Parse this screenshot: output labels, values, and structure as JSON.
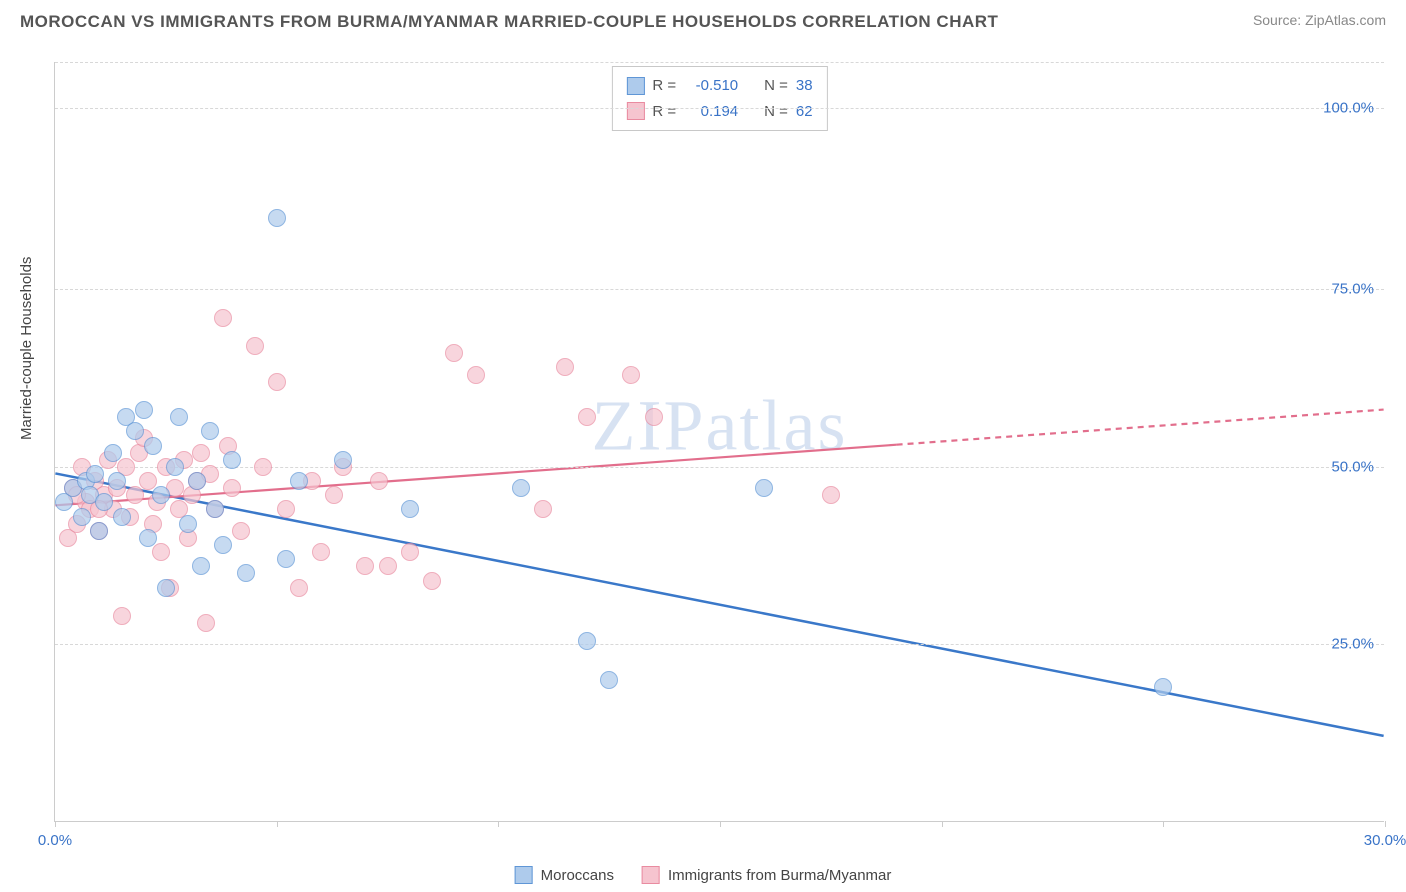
{
  "title": "MOROCCAN VS IMMIGRANTS FROM BURMA/MYANMAR MARRIED-COUPLE HOUSEHOLDS CORRELATION CHART",
  "source": "Source: ZipAtlas.com",
  "watermark": "ZIPatlas",
  "y_axis_label": "Married-couple Households",
  "chart": {
    "type": "scatter",
    "xlim": [
      0,
      30
    ],
    "ylim": [
      0,
      107
    ],
    "x_ticks": [
      0,
      5,
      10,
      15,
      20,
      25,
      30
    ],
    "x_tick_labels": {
      "0": "0.0%",
      "30": "30.0%"
    },
    "y_gridlines": [
      25,
      50,
      75,
      100.5,
      107
    ],
    "y_tick_labels": {
      "25": "25.0%",
      "50": "50.0%",
      "75": "75.0%",
      "100.5": "100.0%"
    },
    "background_color": "#ffffff",
    "grid_color": "#d8d8d8",
    "axis_color": "#cccccc",
    "tick_label_color": "#3973c7",
    "marker_radius": 9,
    "marker_opacity": 0.7
  },
  "series": {
    "blue": {
      "label": "Moroccans",
      "fill": "#aecbec",
      "stroke": "#5f96d6",
      "line_color": "#3a78c9",
      "line_width": 2.5,
      "R": "-0.510",
      "N": "38",
      "regression": {
        "x1": 0,
        "y1": 49,
        "x2": 30,
        "y2": 12,
        "dash_from_x": 30
      },
      "points": [
        [
          0.2,
          45
        ],
        [
          0.4,
          47
        ],
        [
          0.6,
          43
        ],
        [
          0.7,
          48
        ],
        [
          0.8,
          46
        ],
        [
          1.0,
          41
        ],
        [
          1.1,
          45
        ],
        [
          1.3,
          52
        ],
        [
          1.4,
          48
        ],
        [
          1.5,
          43
        ],
        [
          1.6,
          57
        ],
        [
          1.8,
          55
        ],
        [
          2.0,
          58
        ],
        [
          2.1,
          40
        ],
        [
          2.2,
          53
        ],
        [
          2.4,
          46
        ],
        [
          2.5,
          33
        ],
        [
          2.7,
          50
        ],
        [
          2.8,
          57
        ],
        [
          3.0,
          42
        ],
        [
          3.2,
          48
        ],
        [
          3.3,
          36
        ],
        [
          3.5,
          55
        ],
        [
          3.6,
          44
        ],
        [
          3.8,
          39
        ],
        [
          4.0,
          51
        ],
        [
          4.3,
          35
        ],
        [
          5.0,
          85
        ],
        [
          5.2,
          37
        ],
        [
          5.5,
          48
        ],
        [
          6.5,
          51
        ],
        [
          8.0,
          44
        ],
        [
          10.5,
          47
        ],
        [
          12.0,
          25.5
        ],
        [
          12.5,
          20
        ],
        [
          16.0,
          47
        ],
        [
          25.0,
          19
        ],
        [
          0.9,
          49
        ]
      ]
    },
    "pink": {
      "label": "Immigrants from Burma/Myanmar",
      "fill": "#f6c4cf",
      "stroke": "#e98ba0",
      "line_color": "#e26e8c",
      "line_width": 2.2,
      "R": "0.194",
      "N": "62",
      "regression": {
        "x1": 0,
        "y1": 44.5,
        "x2": 30,
        "y2": 58,
        "dash_from_x": 19
      },
      "points": [
        [
          0.3,
          40
        ],
        [
          0.4,
          47
        ],
        [
          0.5,
          42
        ],
        [
          0.6,
          50
        ],
        [
          0.7,
          45
        ],
        [
          0.8,
          44
        ],
        [
          0.9,
          48
        ],
        [
          1.0,
          41
        ],
        [
          1.1,
          46
        ],
        [
          1.2,
          51
        ],
        [
          1.3,
          44
        ],
        [
          1.4,
          47
        ],
        [
          1.5,
          29
        ],
        [
          1.6,
          50
        ],
        [
          1.7,
          43
        ],
        [
          1.8,
          46
        ],
        [
          1.9,
          52
        ],
        [
          2.0,
          54
        ],
        [
          2.1,
          48
        ],
        [
          2.2,
          42
        ],
        [
          2.3,
          45
        ],
        [
          2.4,
          38
        ],
        [
          2.5,
          50
        ],
        [
          2.6,
          33
        ],
        [
          2.7,
          47
        ],
        [
          2.8,
          44
        ],
        [
          2.9,
          51
        ],
        [
          3.0,
          40
        ],
        [
          3.1,
          46
        ],
        [
          3.2,
          48
        ],
        [
          3.3,
          52
        ],
        [
          3.4,
          28
        ],
        [
          3.5,
          49
        ],
        [
          3.6,
          44
        ],
        [
          3.8,
          71
        ],
        [
          3.9,
          53
        ],
        [
          4.0,
          47
        ],
        [
          4.2,
          41
        ],
        [
          4.5,
          67
        ],
        [
          4.7,
          50
        ],
        [
          5.0,
          62
        ],
        [
          5.2,
          44
        ],
        [
          5.5,
          33
        ],
        [
          5.8,
          48
        ],
        [
          6.0,
          38
        ],
        [
          6.3,
          46
        ],
        [
          6.5,
          50
        ],
        [
          7.0,
          36
        ],
        [
          7.3,
          48
        ],
        [
          7.5,
          36
        ],
        [
          8.0,
          38
        ],
        [
          8.5,
          34
        ],
        [
          9.0,
          66
        ],
        [
          9.5,
          63
        ],
        [
          11.0,
          44
        ],
        [
          11.5,
          64
        ],
        [
          12.0,
          57
        ],
        [
          13.0,
          63
        ],
        [
          13.5,
          57
        ],
        [
          17.5,
          46
        ],
        [
          0.5,
          46
        ],
        [
          1.0,
          44
        ]
      ]
    }
  },
  "legend_top": {
    "rows": [
      {
        "swatch": "blue",
        "r_label": "R =",
        "r_val": "-0.510",
        "n_label": "N =",
        "n_val": "38"
      },
      {
        "swatch": "pink",
        "r_label": "R =",
        "r_val": "0.194",
        "n_label": "N =",
        "n_val": "62"
      }
    ]
  }
}
